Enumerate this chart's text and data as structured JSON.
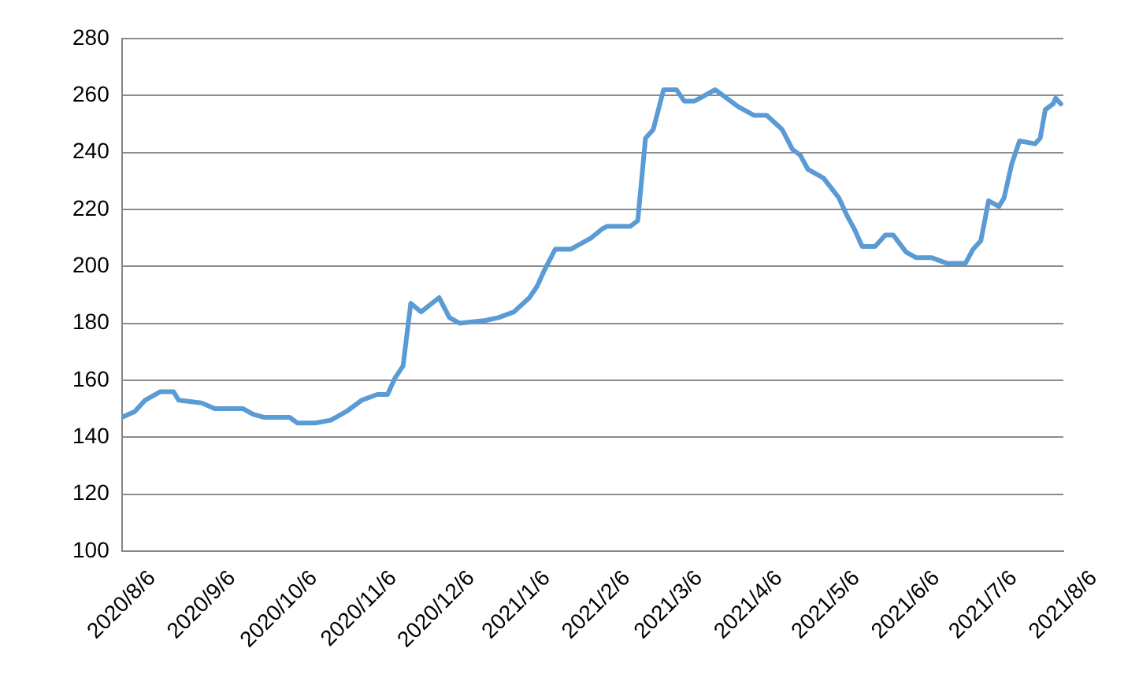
{
  "chart_data": {
    "type": "line",
    "x": [
      "2020-08-06",
      "2020-08-11",
      "2020-08-15",
      "2020-08-21",
      "2020-08-26",
      "2020-08-28",
      "2020-09-06",
      "2020-09-11",
      "2020-09-22",
      "2020-09-26",
      "2020-09-30",
      "2020-10-10",
      "2020-10-13",
      "2020-10-20",
      "2020-10-26",
      "2020-11-01",
      "2020-11-07",
      "2020-11-13",
      "2020-11-17",
      "2020-11-20",
      "2020-11-23",
      "2020-11-26",
      "2020-11-30",
      "2020-12-07",
      "2020-12-11",
      "2020-12-15",
      "2020-12-25",
      "2020-12-30",
      "2021-01-05",
      "2021-01-11",
      "2021-01-14",
      "2021-01-17",
      "2021-01-21",
      "2021-01-27",
      "2021-02-04",
      "2021-02-08",
      "2021-02-10",
      "2021-02-19",
      "2021-02-22",
      "2021-02-25",
      "2021-02-28",
      "2021-03-04",
      "2021-03-09",
      "2021-03-12",
      "2021-03-16",
      "2021-03-24",
      "2021-03-27",
      "2021-04-02",
      "2021-04-08",
      "2021-04-13",
      "2021-04-19",
      "2021-04-23",
      "2021-04-26",
      "2021-04-29",
      "2021-05-05",
      "2021-05-11",
      "2021-05-14",
      "2021-05-17",
      "2021-05-20",
      "2021-05-25",
      "2021-05-29",
      "2021-06-01",
      "2021-06-06",
      "2021-06-10",
      "2021-06-16",
      "2021-06-22",
      "2021-06-29",
      "2021-07-02",
      "2021-07-05",
      "2021-07-08",
      "2021-07-12",
      "2021-07-14",
      "2021-07-17",
      "2021-07-20",
      "2021-07-26",
      "2021-07-28",
      "2021-07-30",
      "2021-08-02",
      "2021-08-03",
      "2021-08-05"
    ],
    "series": [
      {
        "color": "#5b9bd5",
        "values": [
          147,
          149,
          153,
          156,
          156,
          153,
          152,
          150,
          150,
          148,
          147,
          147,
          145,
          145,
          146,
          149,
          153,
          155,
          155,
          161,
          165,
          187,
          184,
          189,
          182,
          180,
          181,
          182,
          184,
          189,
          193,
          199,
          206,
          206,
          210,
          213,
          214,
          214,
          216,
          245,
          248,
          262,
          262,
          258,
          258,
          262,
          260,
          256,
          253,
          253,
          248,
          241,
          239,
          234,
          231,
          224,
          218,
          213,
          207,
          207,
          211,
          211,
          205,
          203,
          203,
          201,
          201,
          206,
          209,
          223,
          221,
          224,
          236,
          244,
          243,
          245,
          255,
          257,
          259,
          257
        ]
      }
    ],
    "xlim": [
      "2020-08-06",
      "2021-08-06"
    ],
    "xticks": [
      {
        "value": "2020-08-06",
        "label": "2020/8/6"
      },
      {
        "value": "2020-09-06",
        "label": "2020/9/6"
      },
      {
        "value": "2020-10-06",
        "label": "2020/10/6"
      },
      {
        "value": "2020-11-06",
        "label": "2020/11/6"
      },
      {
        "value": "2020-12-06",
        "label": "2020/12/6"
      },
      {
        "value": "2021-01-06",
        "label": "2021/1/6"
      },
      {
        "value": "2021-02-06",
        "label": "2021/2/6"
      },
      {
        "value": "2021-03-06",
        "label": "2021/3/6"
      },
      {
        "value": "2021-04-06",
        "label": "2021/4/6"
      },
      {
        "value": "2021-05-06",
        "label": "2021/5/6"
      },
      {
        "value": "2021-06-06",
        "label": "2021/6/6"
      },
      {
        "value": "2021-07-06",
        "label": "2021/7/6"
      },
      {
        "value": "2021-08-06",
        "label": "2021/8/6"
      }
    ],
    "ylim": [
      100,
      280
    ],
    "yticks": [
      100,
      120,
      140,
      160,
      180,
      200,
      220,
      240,
      260,
      280
    ],
    "grid": "y",
    "legend": false,
    "marker": "none",
    "line_style": "solid"
  }
}
